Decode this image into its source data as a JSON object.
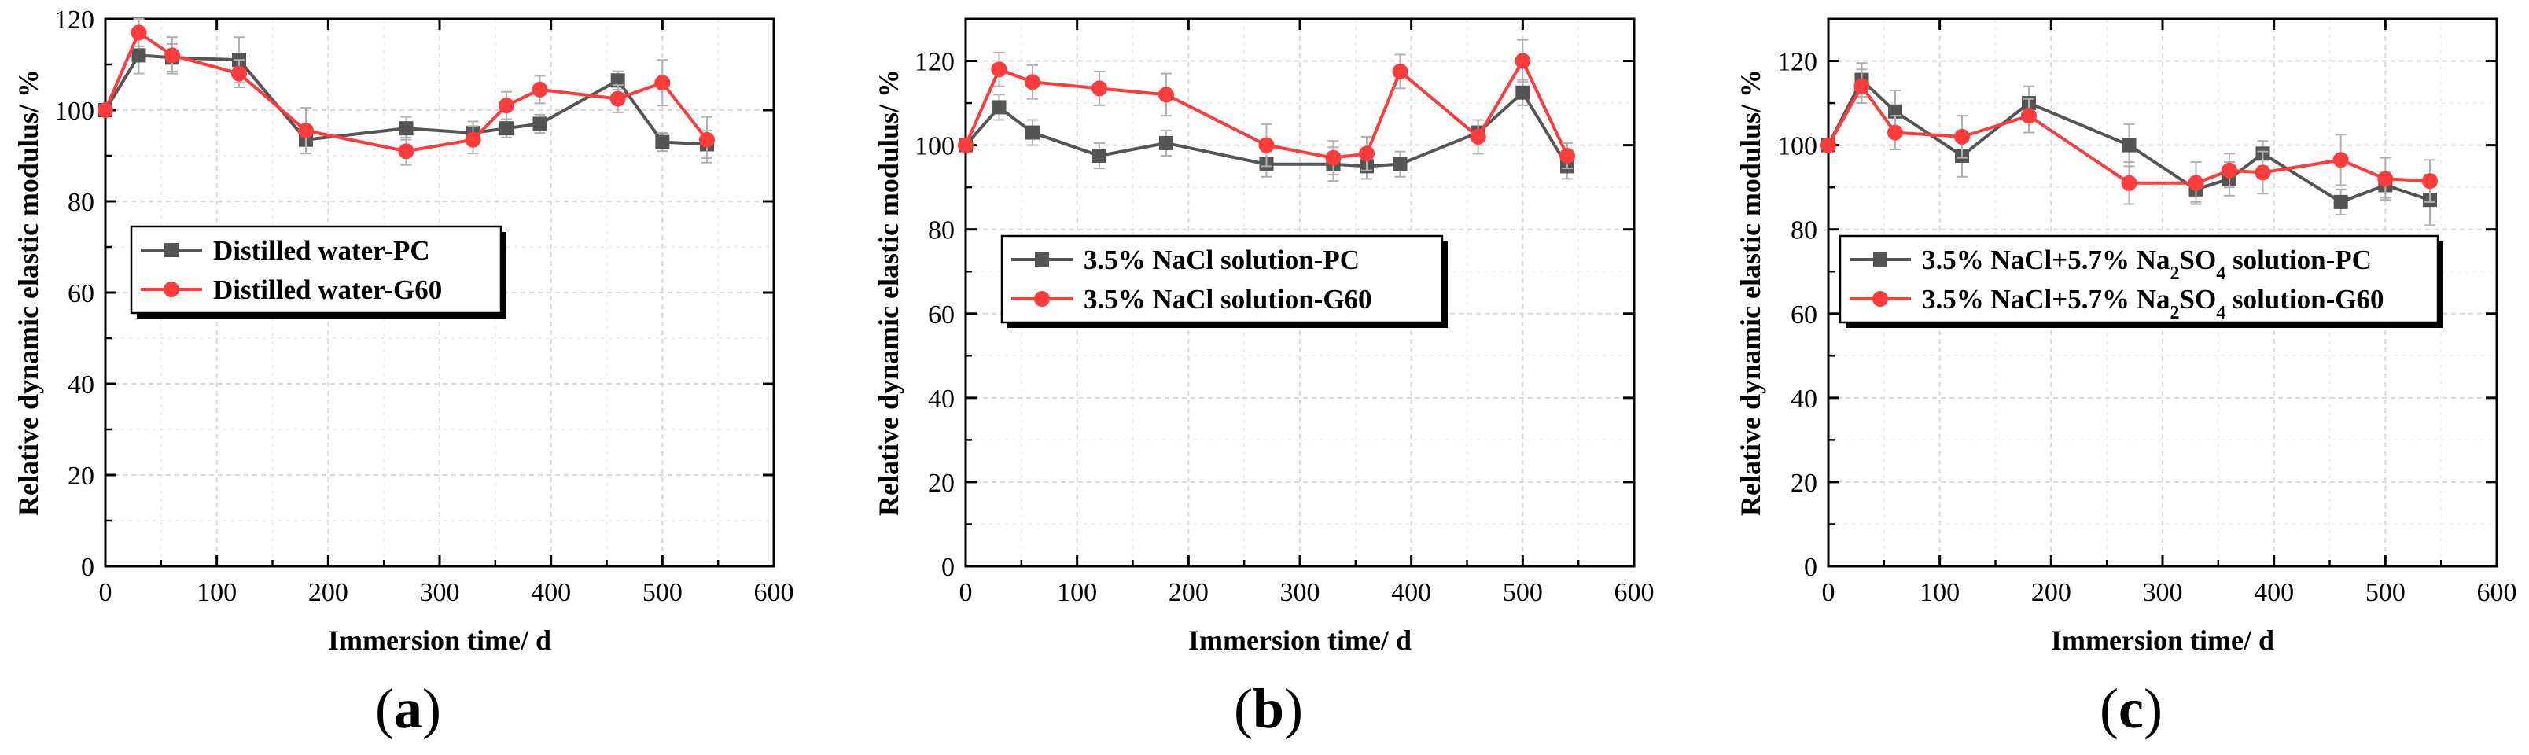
{
  "colors": {
    "pc": "#555555",
    "g60": "#ff3b3b",
    "grid": "#d9d9d9",
    "axis": "#000000"
  },
  "chart_data": [
    {
      "type": "line",
      "panel_label": [
        "(",
        "a",
        ")"
      ],
      "xlabel": "Immersion time/ d",
      "ylabel": "Relative dynamic elastic modulus/ %",
      "xlim": [
        0,
        600
      ],
      "ylim": [
        0,
        120
      ],
      "xticks": [
        "0",
        "100",
        "200",
        "300",
        "400",
        "500",
        "600"
      ],
      "yticks": [
        "0",
        "20",
        "40",
        "60",
        "80",
        "100",
        "120"
      ],
      "grid": true,
      "legend_position": "middle-left",
      "legend": [
        {
          "parts": [
            {
              "t": "Distilled water-PC"
            }
          ]
        },
        {
          "parts": [
            {
              "t": "Distilled water-G60"
            }
          ]
        }
      ],
      "series": [
        {
          "name": "Distilled water-PC",
          "color_key": "pc",
          "marker": "square",
          "x": [
            0,
            30,
            60,
            120,
            180,
            270,
            330,
            360,
            390,
            460,
            500,
            540
          ],
          "y": [
            100,
            112,
            111.5,
            111,
            93.5,
            96,
            95,
            96,
            97,
            106.5,
            93,
            92.5
          ],
          "err": [
            0,
            4,
            3,
            5,
            3,
            2.5,
            2.5,
            2,
            2,
            2,
            2,
            3
          ]
        },
        {
          "name": "Distilled water-G60",
          "color_key": "g60",
          "marker": "circle",
          "x": [
            0,
            30,
            60,
            120,
            180,
            270,
            330,
            360,
            390,
            460,
            500,
            540
          ],
          "y": [
            100,
            117,
            112,
            108,
            95.5,
            91,
            93.5,
            101,
            104.5,
            102.5,
            106,
            93.5
          ],
          "err": [
            0,
            3,
            4,
            3,
            5,
            3,
            3,
            3,
            3,
            3,
            5,
            5
          ]
        }
      ]
    },
    {
      "type": "line",
      "panel_label": [
        "(",
        "b",
        ")"
      ],
      "xlabel": "Immersion time/ d",
      "ylabel": "Relative dynamic elastic modulus/ %",
      "xlim": [
        0,
        600
      ],
      "ylim": [
        0,
        130
      ],
      "xticks": [
        "0",
        "100",
        "200",
        "300",
        "400",
        "500",
        "600"
      ],
      "yticks": [
        "0",
        "20",
        "40",
        "60",
        "80",
        "100",
        "120"
      ],
      "grid": true,
      "legend_position": "middle-left",
      "legend": [
        {
          "parts": [
            {
              "t": "3.5% NaCl solution-PC"
            }
          ]
        },
        {
          "parts": [
            {
              "t": "3.5% NaCl solution-G60"
            }
          ]
        }
      ],
      "series": [
        {
          "name": "3.5% NaCl solution-PC",
          "color_key": "pc",
          "marker": "square",
          "x": [
            0,
            30,
            60,
            120,
            180,
            270,
            330,
            360,
            390,
            460,
            500,
            540
          ],
          "y": [
            100,
            109,
            103,
            97.5,
            100.5,
            95.5,
            95.5,
            95,
            95.5,
            103,
            112.5,
            95
          ],
          "err": [
            0,
            3,
            3,
            3,
            3,
            3,
            4,
            3,
            3,
            3,
            3,
            3
          ]
        },
        {
          "name": "3.5% NaCl solution-G60",
          "color_key": "g60",
          "marker": "circle",
          "x": [
            0,
            30,
            60,
            120,
            180,
            270,
            330,
            360,
            390,
            460,
            500,
            540
          ],
          "y": [
            100,
            118,
            115,
            113.5,
            112,
            100,
            97,
            98,
            117.5,
            102,
            120,
            97.5
          ],
          "err": [
            0,
            4,
            4,
            4,
            5,
            5,
            4,
            4,
            4,
            4,
            5,
            3
          ]
        }
      ]
    },
    {
      "type": "line",
      "panel_label": [
        "(",
        "c",
        ")"
      ],
      "xlabel": "Immersion time/ d",
      "ylabel": "Relative dynamic elastic modulus/ %",
      "xlim": [
        0,
        600
      ],
      "ylim": [
        0,
        130
      ],
      "xticks": [
        "0",
        "100",
        "200",
        "300",
        "400",
        "500",
        "600"
      ],
      "yticks": [
        "0",
        "20",
        "40",
        "60",
        "80",
        "100",
        "120"
      ],
      "grid": true,
      "legend_position": "middle-left",
      "legend": [
        {
          "parts": [
            {
              "t": "3.5% NaCl+5.7% Na"
            },
            {
              "t": "2",
              "sub": true
            },
            {
              "t": "SO"
            },
            {
              "t": "4",
              "sub": true
            },
            {
              "t": " solution-PC"
            }
          ]
        },
        {
          "parts": [
            {
              "t": "3.5% NaCl+5.7% Na"
            },
            {
              "t": "2",
              "sub": true
            },
            {
              "t": "SO"
            },
            {
              "t": "4",
              "sub": true
            },
            {
              "t": " solution-G60"
            }
          ]
        }
      ],
      "series": [
        {
          "name": "3.5% NaCl+5.7% Na2SO4 solution-PC",
          "color_key": "pc",
          "marker": "square",
          "x": [
            0,
            30,
            60,
            120,
            180,
            270,
            330,
            360,
            390,
            460,
            500,
            540
          ],
          "y": [
            100,
            115.5,
            108,
            97.5,
            110,
            100,
            89.5,
            92,
            98,
            86.5,
            90.5,
            87
          ],
          "err": [
            0,
            4,
            5,
            5,
            4,
            5,
            3,
            4,
            3,
            3,
            3,
            6
          ]
        },
        {
          "name": "3.5% NaCl+5.7% Na2SO4 solution-G60",
          "color_key": "g60",
          "marker": "circle",
          "x": [
            0,
            30,
            60,
            120,
            180,
            270,
            330,
            360,
            390,
            460,
            500,
            540
          ],
          "y": [
            100,
            114,
            103,
            102,
            107,
            91,
            91,
            94,
            93.5,
            96.5,
            92,
            91.5
          ],
          "err": [
            0,
            4,
            4,
            5,
            4,
            5,
            5,
            4,
            5,
            6,
            5,
            5
          ]
        }
      ]
    }
  ]
}
